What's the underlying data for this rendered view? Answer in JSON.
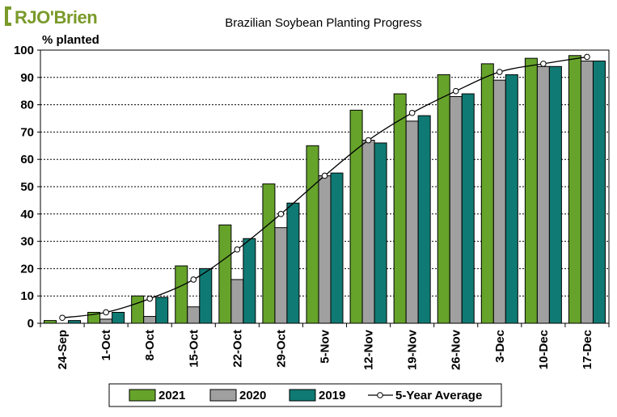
{
  "logo": {
    "text": "RJO'Brien",
    "color": "#7a9a2a"
  },
  "chart_data": {
    "type": "bar",
    "title": "Brazilian Soybean Planting Progress",
    "ylabel": "% planted",
    "xlabel": "",
    "ylim": [
      0,
      100
    ],
    "yticks": [
      0,
      10,
      20,
      30,
      40,
      50,
      60,
      70,
      80,
      90,
      100
    ],
    "grid": "horizontal-dashed",
    "legend_position": "bottom",
    "categories": [
      "24-Sep",
      "1-Oct",
      "8-Oct",
      "15-Oct",
      "22-Oct",
      "29-Oct",
      "5-Nov",
      "12-Nov",
      "19-Nov",
      "26-Nov",
      "3-Dec",
      "10-Dec",
      "17-Dec"
    ],
    "series": [
      {
        "name": "2021",
        "kind": "bar",
        "color": "#66a32a",
        "values": [
          1,
          4,
          10,
          21,
          36,
          51,
          65,
          78,
          84,
          91,
          95,
          97,
          98
        ]
      },
      {
        "name": "2020",
        "kind": "bar",
        "color": "#a0a0a0",
        "values": [
          0,
          1.5,
          2.5,
          6,
          16,
          35,
          54,
          67,
          74,
          83,
          89,
          94,
          96
        ]
      },
      {
        "name": "2019",
        "kind": "bar",
        "color": "#0f7a73",
        "values": [
          1,
          4,
          9.5,
          20,
          31,
          44,
          55,
          66,
          76,
          84,
          91,
          94,
          96
        ]
      },
      {
        "name": "5-Year Average",
        "kind": "line",
        "color": "#000000",
        "values": [
          2,
          4,
          9,
          16,
          27,
          40,
          54,
          67,
          77,
          85,
          92,
          95,
          97.5
        ]
      }
    ]
  }
}
